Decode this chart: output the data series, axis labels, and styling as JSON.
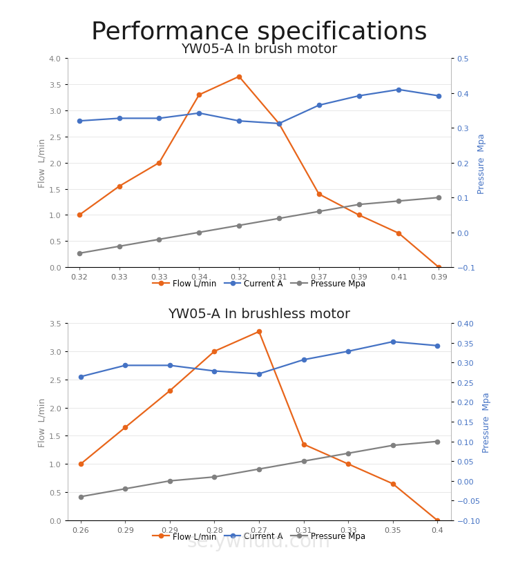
{
  "title": "Performance specifications",
  "chart1_title": "YW05-A In brush motor",
  "chart2_title": "YW05-A In brushless motor",
  "chart1": {
    "x_labels": [
      "0.32",
      "0.33",
      "0.33",
      "0.34",
      "0.32",
      "0.31",
      "0.37",
      "0.39",
      "0.41",
      "0.39"
    ],
    "flow": [
      1.0,
      1.55,
      2.0,
      3.3,
      3.65,
      2.75,
      1.4,
      1.0,
      0.65,
      0.0
    ],
    "current": [
      2.8,
      2.85,
      2.85,
      2.95,
      2.8,
      2.75,
      3.1,
      3.28,
      3.4,
      3.28
    ],
    "pressure": [
      -0.06,
      -0.04,
      -0.02,
      0.0,
      0.02,
      0.04,
      0.06,
      0.08,
      0.09,
      0.1
    ],
    "ylim_left": [
      0,
      4
    ],
    "ylim_right": [
      -0.1,
      0.5
    ],
    "yticks_left": [
      0,
      0.5,
      1.0,
      1.5,
      2.0,
      2.5,
      3.0,
      3.5,
      4.0
    ],
    "yticks_right": [
      -0.1,
      0,
      0.1,
      0.2,
      0.3,
      0.4,
      0.5
    ]
  },
  "chart2": {
    "x_labels": [
      "0.26",
      "0.29",
      "0.29",
      "0.28",
      "0.27",
      "0.31",
      "0.33",
      "0.35",
      "0.4"
    ],
    "flow": [
      1.0,
      1.65,
      2.3,
      3.0,
      3.35,
      1.35,
      1.0,
      0.65,
      0.0
    ],
    "current": [
      2.55,
      2.75,
      2.75,
      2.65,
      2.6,
      2.85,
      3.0,
      3.17,
      3.1
    ],
    "pressure": [
      -0.04,
      -0.02,
      0.0,
      0.01,
      0.03,
      0.05,
      0.07,
      0.09,
      0.1
    ],
    "ylim_left": [
      0,
      3.5
    ],
    "ylim_right": [
      -0.1,
      0.4
    ],
    "yticks_left": [
      0,
      0.5,
      1.0,
      1.5,
      2.0,
      2.5,
      3.0,
      3.5
    ],
    "yticks_right": [
      -0.1,
      -0.05,
      0,
      0.05,
      0.1,
      0.15,
      0.2,
      0.25,
      0.3,
      0.35,
      0.4
    ]
  },
  "flow_color": "#E8651A",
  "current_color": "#4472C4",
  "pressure_color": "#808080",
  "right_axis_color": "#4472C4",
  "left_axis_color": "#808080",
  "legend_labels": [
    "Flow L/min",
    "Current A",
    "Pressure Mpa"
  ],
  "ylabel_left": "Flow  L/min",
  "ylabel_right": "Pressure  Mpa",
  "bg_color": "#FFFFFF",
  "title_fontsize": 26,
  "subtitle_fontsize": 14,
  "tick_fontsize": 8,
  "label_fontsize": 9
}
